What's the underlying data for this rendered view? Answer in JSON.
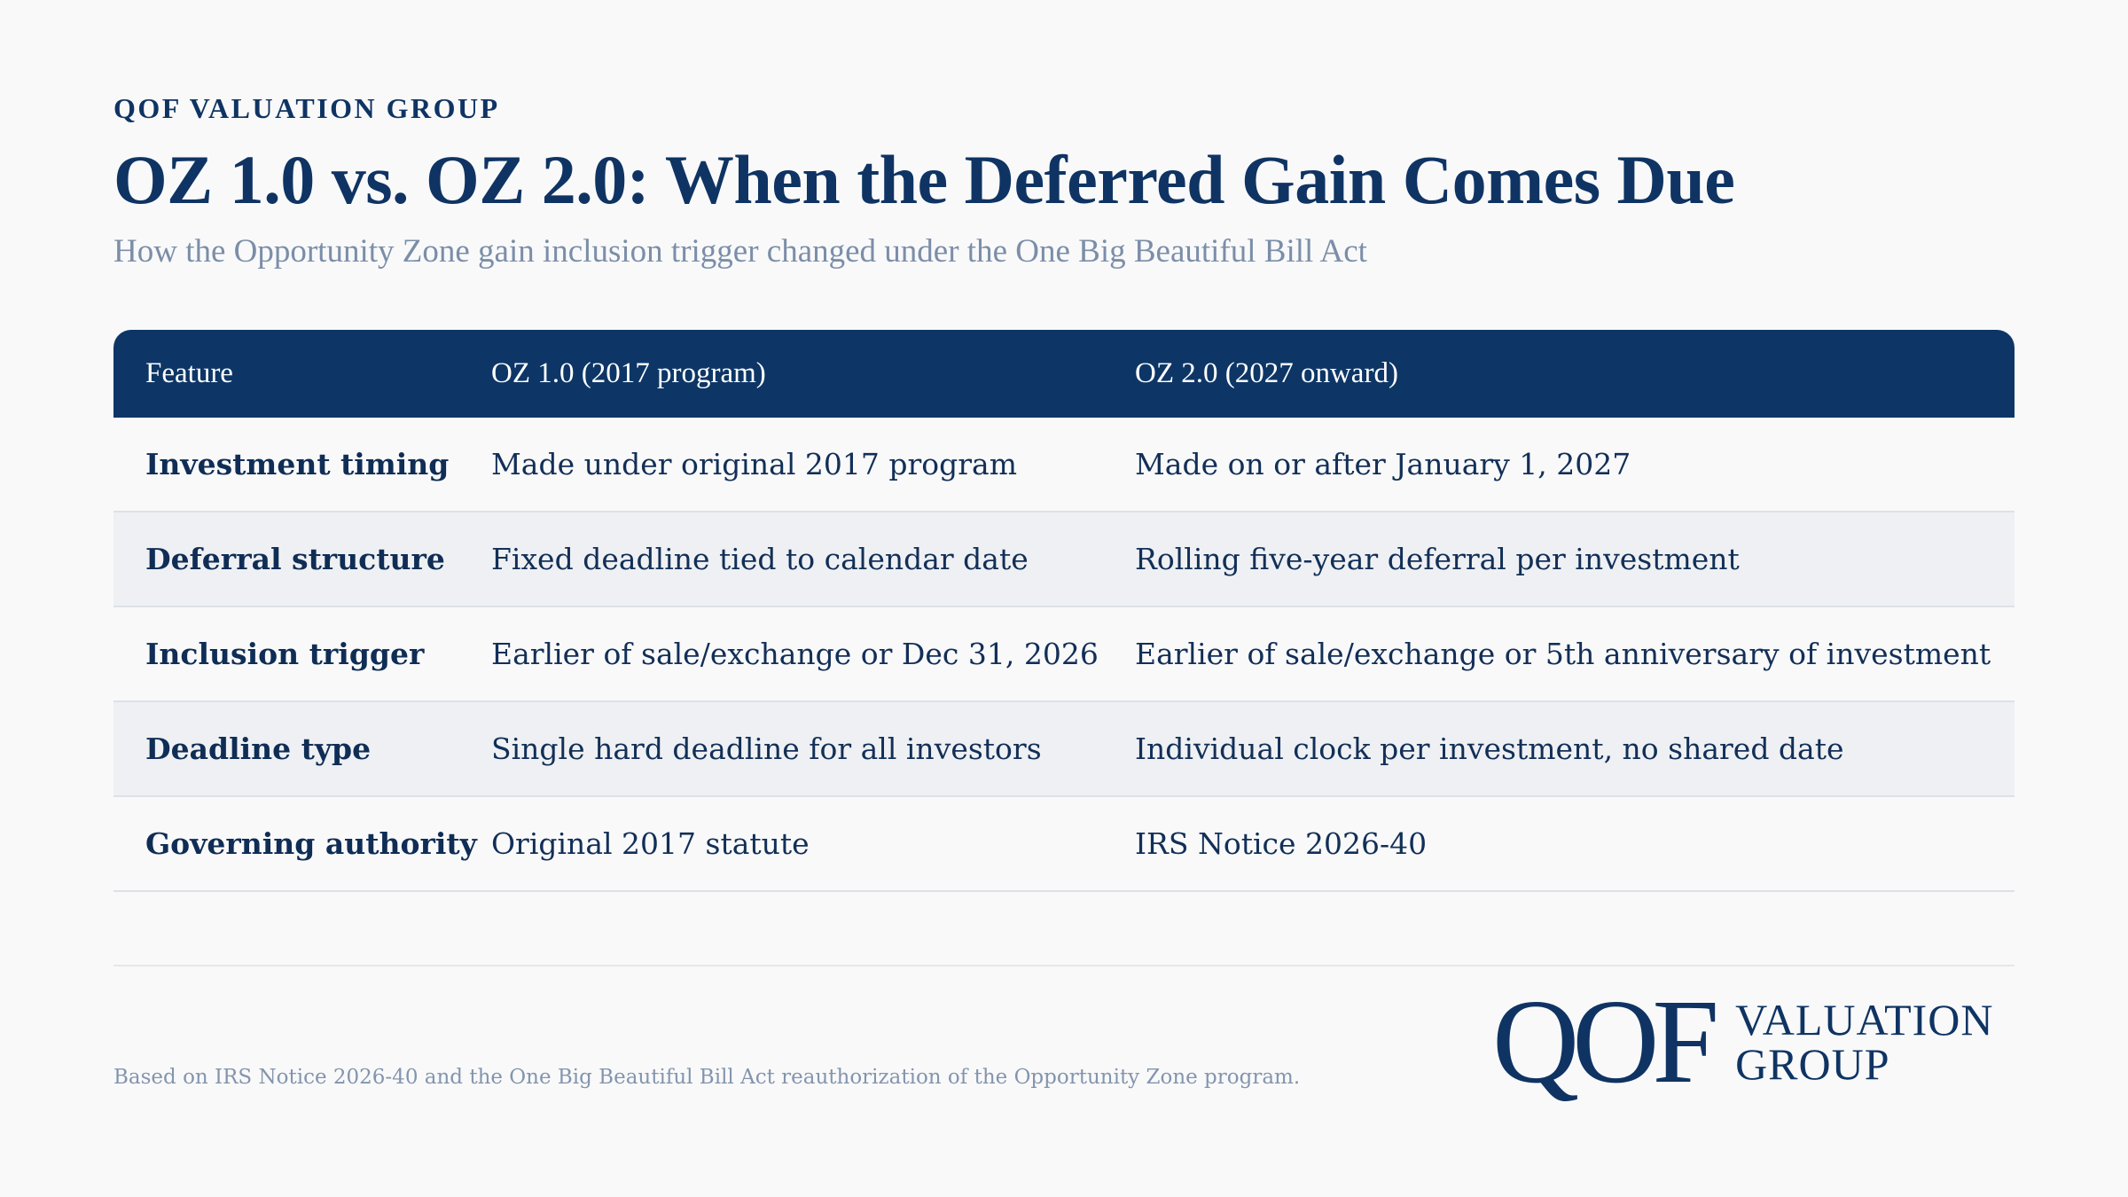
{
  "header": {
    "brand": "QOF VALUATION GROUP",
    "title": "OZ 1.0 vs. OZ 2.0: When the Deferred Gain Comes Due",
    "subtitle": "How the Opportunity Zone gain inclusion trigger changed under the One Big Beautiful Bill Act"
  },
  "table": {
    "columns": [
      "Feature",
      "OZ 1.0 (2017 program)",
      "OZ 2.0 (2027 onward)"
    ],
    "rows": [
      [
        "Investment timing",
        "Made under original 2017 program",
        "Made on or after January 1, 2027"
      ],
      [
        "Deferral structure",
        "Fixed deadline tied to calendar date",
        "Rolling five-year deferral per investment"
      ],
      [
        "Inclusion trigger",
        "Earlier of sale/exchange or Dec 31, 2026",
        "Earlier of sale/exchange or 5th anniversary of investment"
      ],
      [
        "Deadline type",
        "Single hard deadline for all investors",
        "Individual clock per investment, no shared date"
      ],
      [
        "Governing authority",
        "Original 2017 statute",
        "IRS Notice 2026-40"
      ]
    ]
  },
  "footer": {
    "note": "Based on IRS Notice 2026-40 and the One Big Beautiful Bill Act reauthorization of the Opportunity Zone program.",
    "logo_mark": "QOF",
    "logo_line1": "VALUATION",
    "logo_line2": "GROUP"
  },
  "colors": {
    "navy": "#0d3666",
    "background": "#f9f9fa",
    "alt_row": "#eef0f3",
    "muted_text": "#7b8ea8"
  }
}
